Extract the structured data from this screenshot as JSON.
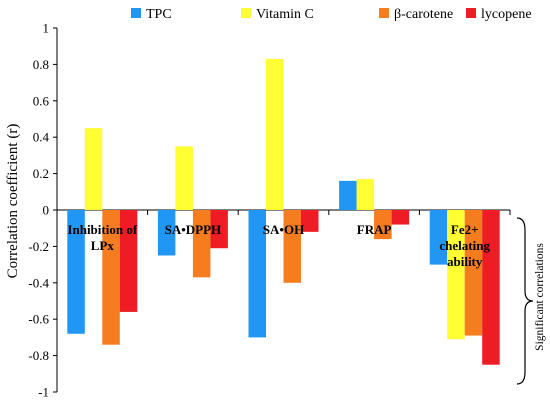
{
  "chart_data": {
    "type": "bar",
    "categories": [
      {
        "lines": [
          "Inhibition of",
          "LPx"
        ]
      },
      {
        "lines": [
          "SA•DPPH"
        ]
      },
      {
        "lines": [
          "SA•OH"
        ]
      },
      {
        "lines": [
          "FRAP"
        ]
      },
      {
        "lines": [
          "Fe2+",
          "chelating",
          "ability"
        ]
      }
    ],
    "series": [
      {
        "name": "TPC",
        "color": "#2196F3",
        "values": [
          -0.68,
          -0.25,
          -0.7,
          0.16,
          -0.3
        ]
      },
      {
        "name": "Vitamin C",
        "color": "#FFFF33",
        "values": [
          0.45,
          0.35,
          0.83,
          0.17,
          -0.71
        ]
      },
      {
        "name": "β-carotene",
        "color": "#F57C1F",
        "values": [
          -0.74,
          -0.37,
          -0.4,
          -0.16,
          -0.69
        ]
      },
      {
        "name": "lycopene",
        "color": "#EE1C24",
        "values": [
          -0.56,
          -0.21,
          -0.12,
          -0.08,
          -0.85
        ]
      }
    ],
    "ylabel": "Correlation coefficient (r)",
    "ylim": [
      -1,
      1
    ],
    "yticks": [
      "1",
      "0.8",
      "0.6",
      "0.4",
      "0.2",
      "0",
      "-0.2",
      "-0.4",
      "-0.6",
      "-0.8",
      "-1"
    ],
    "legend_position": "top",
    "annotation": "Significant correlations",
    "grid": false
  }
}
